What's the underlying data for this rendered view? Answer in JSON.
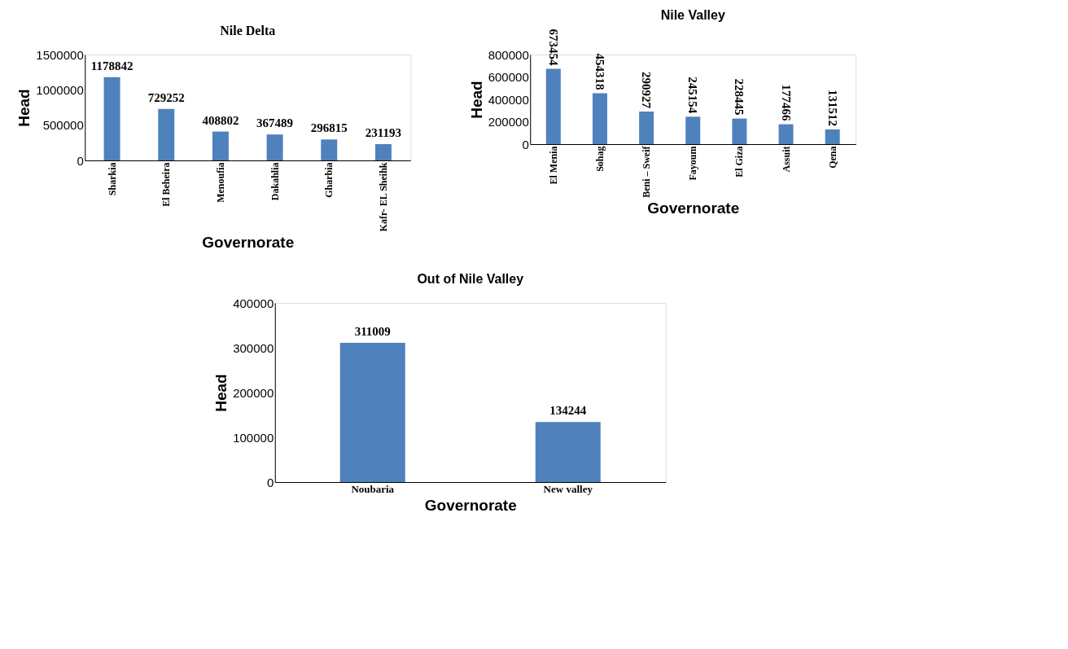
{
  "chart_data": [
    {
      "type": "bar",
      "title": "Nile Delta",
      "xlabel": "Governorate",
      "ylabel": "Head",
      "categories": [
        "Sharkia",
        "El Beheira",
        "Menoufia",
        "Dakahlia",
        "Gharbia",
        "Kafr- EL Sheihk"
      ],
      "values": [
        1178842,
        729252,
        408802,
        367489,
        296815,
        231193
      ],
      "color": "#4f81bd",
      "ylim": [
        0,
        1500000
      ],
      "yticks": [
        0,
        500000,
        1000000,
        1500000
      ],
      "data_labels": true
    },
    {
      "type": "bar",
      "title": "Nile Valley",
      "xlabel": "Governorate",
      "ylabel": "Head",
      "categories": [
        "El Menia",
        "Sohag",
        "Beni – Sweif",
        "Fayoum",
        "El Giza",
        "Assuit",
        "Qena"
      ],
      "values": [
        673454,
        454318,
        290927,
        245154,
        228445,
        177466,
        131512
      ],
      "color": "#4f81bd",
      "ylim": [
        0,
        800000
      ],
      "yticks": [
        0,
        200000,
        400000,
        600000,
        800000
      ],
      "data_labels": true
    },
    {
      "type": "bar",
      "title": "Out of Nile Valley",
      "xlabel": "Governorate",
      "ylabel": "Head",
      "categories": [
        "Noubaria",
        "New valley"
      ],
      "values": [
        311009,
        134244
      ],
      "color": "#4f81bd",
      "ylim": [
        0,
        400000
      ],
      "yticks": [
        0,
        100000,
        200000,
        300000,
        400000
      ],
      "data_labels": true
    }
  ]
}
